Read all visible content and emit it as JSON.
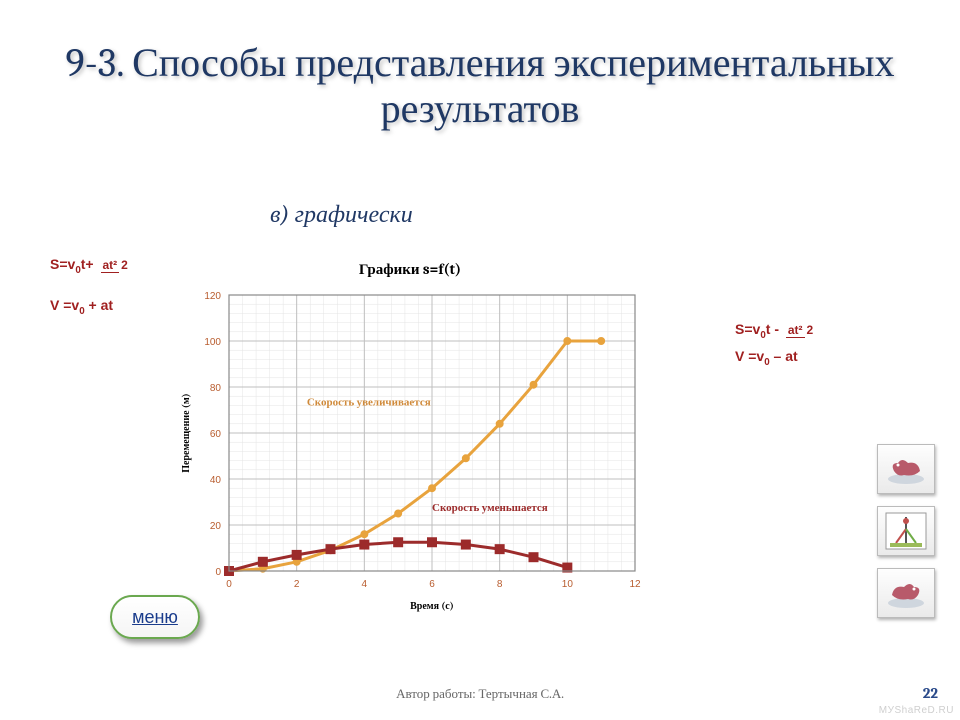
{
  "title": "9-3. Способы представления экспериментальных  результатов",
  "subtitle": "в)  графически",
  "formula_left": {
    "s_prefix": "S=v",
    "s_sub": "0",
    "s_mid": "t+",
    "frac_num": "at²",
    "frac_den": "2",
    "v_prefix": "V =v",
    "v_sub": "0",
    "v_suffix": " + at"
  },
  "formula_right": {
    "s_prefix": "S=v",
    "s_sub": "0",
    "s_mid": "t -",
    "frac_num": "at²",
    "frac_den": "2",
    "v_prefix": "V =v",
    "v_sub": "0",
    "v_suffix": " – at"
  },
  "menu_label": "меню",
  "footer_author": "Автор работы: Тертычная С.А.",
  "page_number": "22",
  "watermark": "MУShаRеD.RU",
  "chart": {
    "type": "line",
    "title": "Графики s=f(t)",
    "xlabel": "Время (с)",
    "ylabel": "Перемещение (м)",
    "xlim": [
      0,
      12
    ],
    "ylim": [
      0,
      120
    ],
    "xtick_step": 2,
    "ytick_step": 20,
    "x_ticks": [
      0,
      2,
      4,
      6,
      8,
      10,
      12
    ],
    "y_ticks": [
      0,
      20,
      40,
      60,
      80,
      100,
      120
    ],
    "background_color": "#ffffff",
    "plot_border_color": "#888888",
    "grid_major_color": "#bfbfbf",
    "grid_minor_color": "#e4e4e4",
    "minor_steps_x": 5,
    "minor_steps_y": 5,
    "label_fontsize": 10,
    "tick_fontsize": 10,
    "tick_color": "#b85c2e",
    "series": [
      {
        "name": "accel",
        "color": "#e8a33d",
        "marker": "circle",
        "marker_size": 7,
        "marker_fill": "#e8a33d",
        "line_width": 3,
        "points_x": [
          0,
          1,
          2,
          3,
          4,
          5,
          6,
          7,
          8,
          9,
          10,
          11
        ],
        "points_y": [
          0,
          1,
          4,
          9,
          16,
          25,
          36,
          49,
          64,
          81,
          100,
          100
        ],
        "annotation": "Скорость увеличивается",
        "annotation_xy": [
          2.3,
          72
        ],
        "annotation_color": "#d08a3a"
      },
      {
        "name": "decel",
        "color": "#9c2b2b",
        "marker": "square",
        "marker_size": 9,
        "marker_fill": "#9c2b2b",
        "line_width": 3,
        "points_x": [
          0,
          1,
          2,
          3,
          4,
          5,
          6,
          7,
          8,
          9,
          10
        ],
        "points_y": [
          0,
          4,
          7,
          9.5,
          11.5,
          12.5,
          12.5,
          11.5,
          9.5,
          6,
          1.5
        ],
        "annotation": "Скорость уменьшается",
        "annotation_xy": [
          6.0,
          26
        ],
        "annotation_color": "#9c2b2b"
      }
    ]
  }
}
